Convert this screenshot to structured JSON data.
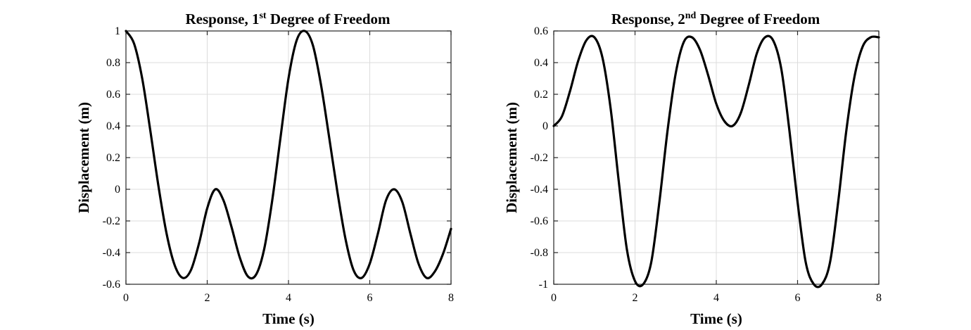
{
  "chart_data": [
    {
      "type": "line",
      "title": {
        "prefix": "Response, 1",
        "superscript": "st",
        "suffix": " Degree of Freedom"
      },
      "xlabel": "Time (s)",
      "ylabel": "Displacement (m)",
      "xlim": [
        0,
        8
      ],
      "ylim": [
        -0.6,
        1
      ],
      "xticks": [
        "0",
        "2",
        "4",
        "6",
        "8"
      ],
      "yticks": [
        "-0.6",
        "-0.4",
        "-0.2",
        "0",
        "0.2",
        "0.4",
        "0.6",
        "0.8",
        "1"
      ],
      "grid": true,
      "series": [
        {
          "color": "#000000",
          "x": [
            0,
            0.2,
            0.4,
            0.6,
            0.8,
            1.0,
            1.2,
            1.4,
            1.6,
            1.8,
            2.0,
            2.2,
            2.4,
            2.6,
            2.8,
            3.0,
            3.2,
            3.4,
            3.6,
            3.8,
            4.0,
            4.2,
            4.4,
            4.6,
            4.8,
            5.0,
            5.2,
            5.4,
            5.6,
            5.8,
            6.0,
            6.2,
            6.4,
            6.6,
            6.8,
            7.0,
            7.2,
            7.4,
            7.6,
            7.8,
            8.0
          ],
          "values": [
            1.0,
            0.92,
            0.7,
            0.37,
            0.02,
            -0.28,
            -0.48,
            -0.56,
            -0.51,
            -0.34,
            -0.12,
            0.0,
            -0.07,
            -0.24,
            -0.43,
            -0.55,
            -0.54,
            -0.38,
            -0.07,
            0.32,
            0.7,
            0.94,
            1.0,
            0.91,
            0.66,
            0.33,
            -0.01,
            -0.31,
            -0.51,
            -0.56,
            -0.47,
            -0.28,
            -0.07,
            0.0,
            -0.08,
            -0.28,
            -0.47,
            -0.56,
            -0.52,
            -0.41,
            -0.25
          ]
        }
      ]
    },
    {
      "type": "line",
      "title": {
        "prefix": "Response, 2",
        "superscript": "nd",
        "suffix": " Degree of Freedom"
      },
      "xlabel": "Time (s)",
      "ylabel": "Displacement (m)",
      "xlim": [
        0,
        8
      ],
      "ylim": [
        -1,
        0.6
      ],
      "xticks": [
        "0",
        "2",
        "4",
        "6",
        "8"
      ],
      "yticks": [
        "-1",
        "-0.8",
        "-0.6",
        "-0.4",
        "-0.2",
        "0",
        "0.2",
        "0.4",
        "0.6"
      ],
      "grid": true,
      "series": [
        {
          "color": "#000000",
          "x": [
            0,
            0.2,
            0.4,
            0.6,
            0.8,
            1.0,
            1.2,
            1.4,
            1.6,
            1.8,
            2.0,
            2.2,
            2.4,
            2.6,
            2.8,
            3.0,
            3.2,
            3.4,
            3.6,
            3.8,
            4.0,
            4.2,
            4.4,
            4.6,
            4.8,
            5.0,
            5.2,
            5.4,
            5.6,
            5.8,
            6.0,
            6.2,
            6.4,
            6.6,
            6.8,
            7.0,
            7.2,
            7.4,
            7.6,
            7.8,
            8.0
          ],
          "values": [
            0.0,
            0.06,
            0.22,
            0.41,
            0.54,
            0.56,
            0.43,
            0.11,
            -0.35,
            -0.78,
            -0.98,
            -1.0,
            -0.86,
            -0.48,
            -0.03,
            0.33,
            0.53,
            0.56,
            0.48,
            0.32,
            0.14,
            0.03,
            0.0,
            0.08,
            0.26,
            0.46,
            0.56,
            0.54,
            0.36,
            -0.03,
            -0.48,
            -0.86,
            -1.0,
            -1.0,
            -0.86,
            -0.48,
            -0.03,
            0.31,
            0.5,
            0.56,
            0.56
          ]
        }
      ]
    }
  ]
}
